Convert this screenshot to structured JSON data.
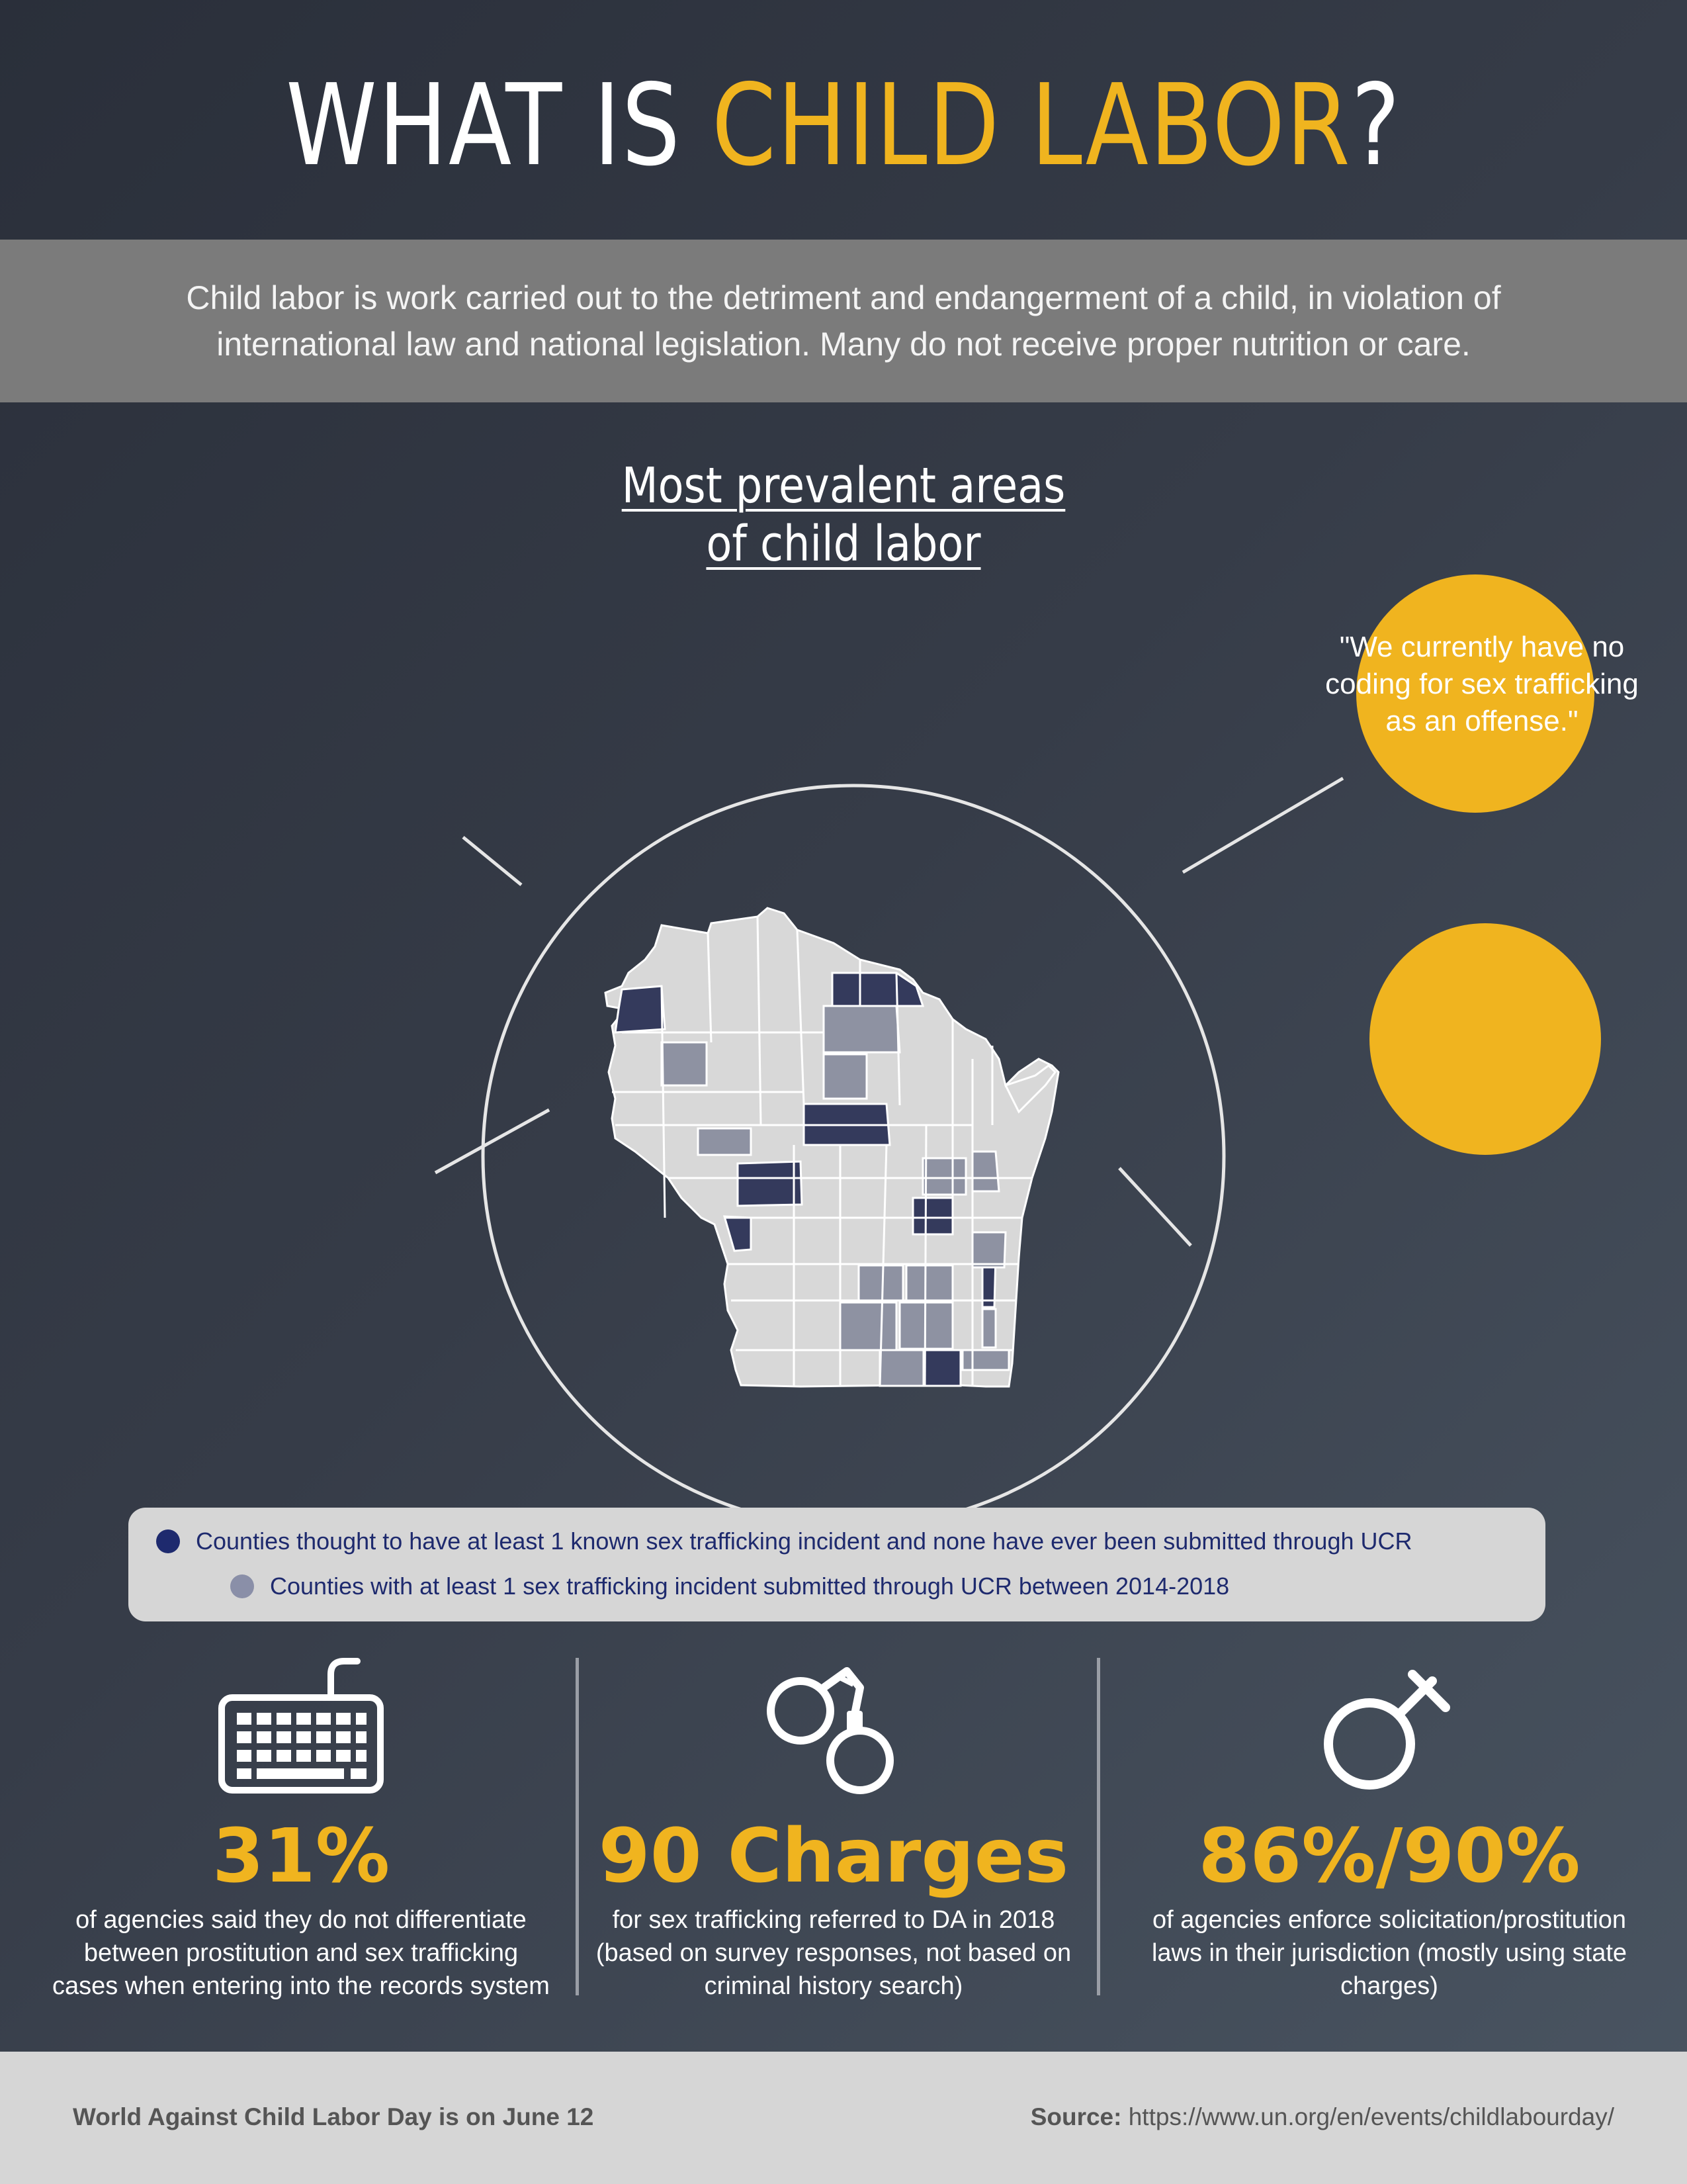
{
  "header": {
    "title_plain": "WHAT IS ",
    "title_accent": "CHILD LABOR",
    "title_end": "?"
  },
  "definition": "Child labor is work carried out to the detriment and endangerment of a child, in violation of international law and national legislation. Many do not receive proper nutrition or care.",
  "map_section": {
    "title_line1": "Most prevalent areas",
    "title_line2": "of child labor"
  },
  "quote": "\"We currently have no coding for sex trafficking as an offense.\"",
  "legend": {
    "items": [
      {
        "label": "Counties thought to have at least 1 known sex trafficking incident and none have ever been submitted through UCR",
        "color": "#1e2a6e"
      },
      {
        "label": "Counties with at least 1 sex trafficking incident submitted through UCR between 2014-2018",
        "color": "#8a8fa8"
      }
    ]
  },
  "colors": {
    "accent": "#f0b41f",
    "county_default": "#d8d8d8",
    "county_dark": "#343a5c",
    "county_mid": "#8e92a2"
  },
  "stats": [
    {
      "icon": "keyboard-icon",
      "value": "31%",
      "description": "of agencies said they do not differentiate between prostitution and sex trafficking cases when entering into the records system"
    },
    {
      "icon": "handcuffs-icon",
      "value": "90 Charges",
      "description": "for sex trafficking referred to DA in 2018 (based on survey responses, not based on criminal history search)"
    },
    {
      "icon": "gender-symbol-icon",
      "value": "86%/90%",
      "description": "of agencies enforce solicitation/prostitution laws in their jurisdiction (mostly using state charges)"
    }
  ],
  "footer": {
    "note": "World Against Child Labor Day is on June 12",
    "source_label": "Source:",
    "source_url": "https://www.un.org/en/events/childlabourday/"
  }
}
